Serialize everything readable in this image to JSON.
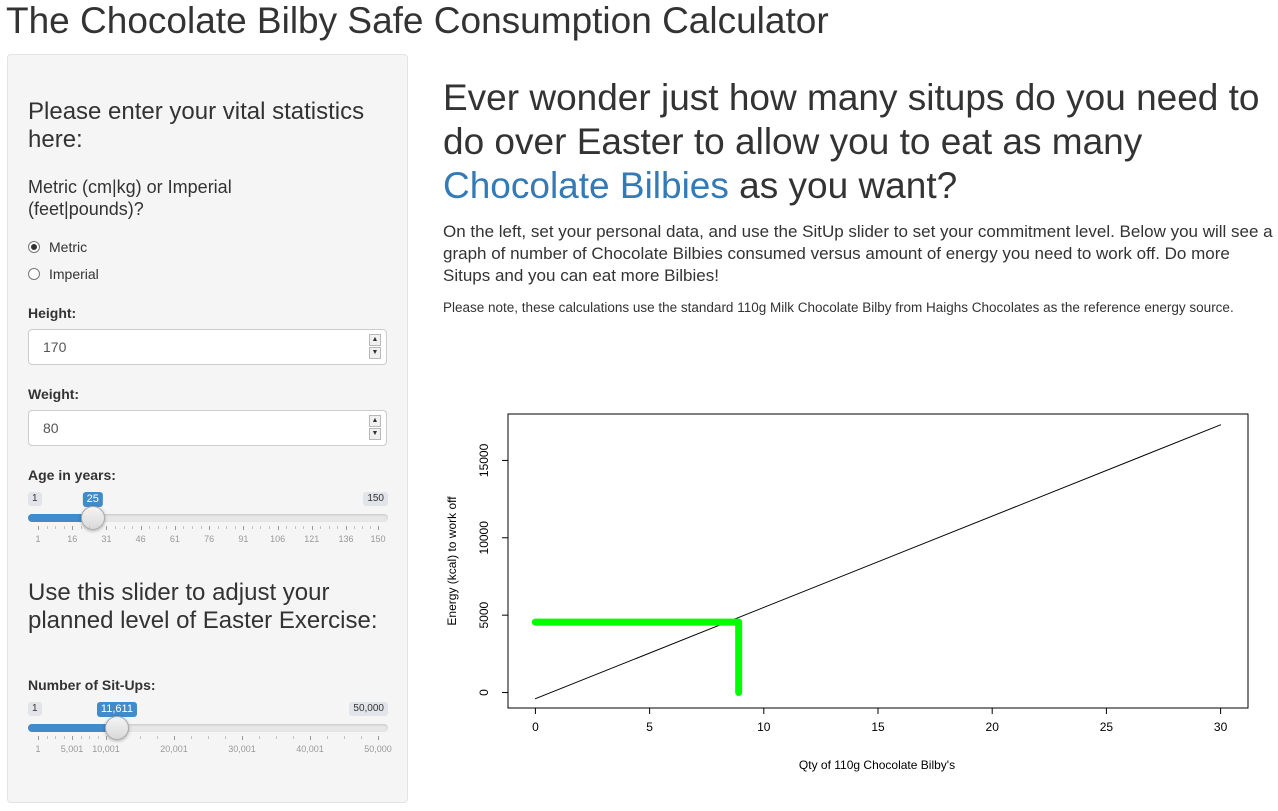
{
  "app": {
    "title": "The Chocolate Bilby Safe Consumption Calculator"
  },
  "sidebar": {
    "heading1": "Please enter your vital statistics here:",
    "units_label": "Metric (cm|kg) or Imperial (feet|pounds)?",
    "units_options": [
      {
        "label": "Metric",
        "checked": true
      },
      {
        "label": "Imperial",
        "checked": false
      }
    ],
    "height": {
      "label": "Height:",
      "value": "170"
    },
    "weight": {
      "label": "Weight:",
      "value": "80"
    },
    "age": {
      "label": "Age in years:",
      "min": 1,
      "max": 150,
      "value": 25,
      "min_label": "1",
      "max_label": "150",
      "value_label": "25",
      "ticks": [
        "1",
        "16",
        "31",
        "46",
        "61",
        "76",
        "91",
        "106",
        "121",
        "136",
        "150"
      ]
    },
    "heading2": "Use this slider to adjust your planned level of Easter Exercise:",
    "situps": {
      "label": "Number of Sit-Ups:",
      "min": 1,
      "max": 50000,
      "value": 11611,
      "min_label": "1",
      "max_label": "50,000",
      "value_label": "11,611",
      "ticks": [
        "1",
        "5,001",
        "10,001",
        "20,001",
        "30,001",
        "40,001",
        "50,000"
      ],
      "tick_values": [
        1,
        5001,
        10001,
        20001,
        30001,
        40001,
        50000
      ]
    }
  },
  "main": {
    "heading_before": "Ever wonder just how many situps do you need to do over Easter to allow you to eat as many ",
    "heading_link": "Chocolate Bilbies",
    "heading_after": " as you want?",
    "paragraph": "On the left, set your personal data, and use the SitUp slider to set your commitment level. Below you will see a graph of number of Chocolate Bilbies consumed versus amount of energy you need to work off. Do more Situps and you can eat more Bilbies!",
    "note": "Please note, these calculations use the standard 110g Milk Chocolate Bilby from Haighs Chocolates as the reference energy source."
  },
  "chart_data": {
    "type": "line",
    "xlabel": "Qty of 110g Chocolate Bilby's",
    "ylabel": "Energy (kcal) to work off",
    "xlim": [
      -1.2,
      31.2
    ],
    "ylim": [
      -1000,
      18000
    ],
    "xticks": [
      0,
      5,
      10,
      15,
      20,
      25,
      30
    ],
    "yticks": [
      0,
      5000,
      10000,
      15000
    ],
    "series": [
      {
        "x": [
          0,
          30
        ],
        "y": [
          -400,
          17300
        ],
        "color": "#000000"
      },
      {
        "x": [
          0,
          8.9,
          8.9
        ],
        "y": [
          4550,
          4550,
          0
        ],
        "color": "#00ff00"
      }
    ]
  }
}
